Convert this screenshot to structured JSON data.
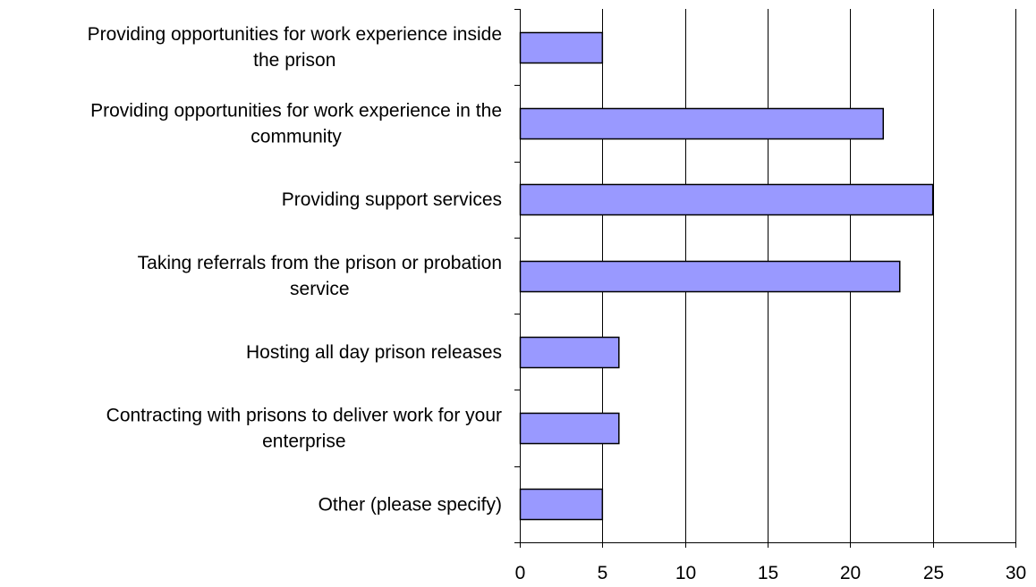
{
  "chart_data": {
    "type": "bar",
    "orientation": "horizontal",
    "categories": [
      [
        "Providing opportunities for work experience inside",
        "the prison"
      ],
      [
        "Providing opportunities for work experience in the",
        "community"
      ],
      [
        "Providing support services"
      ],
      [
        "Taking referrals from the prison or probation",
        "service"
      ],
      [
        "Hosting all day prison releases"
      ],
      [
        "Contracting with prisons to deliver work for your",
        "enterprise"
      ],
      [
        "Other (please specify)"
      ]
    ],
    "values": [
      5,
      22,
      25,
      23,
      6,
      6,
      5
    ],
    "xlim": [
      0,
      30
    ],
    "xticks": [
      0,
      5,
      10,
      15,
      20,
      25,
      30
    ],
    "grid": "vertical",
    "legend": "none",
    "title": "",
    "xlabel": "",
    "ylabel": "",
    "colors": {
      "bar_fill": "#9999ff",
      "bar_stroke": "#000000",
      "grid": "#000000",
      "axis": "#000000"
    }
  }
}
